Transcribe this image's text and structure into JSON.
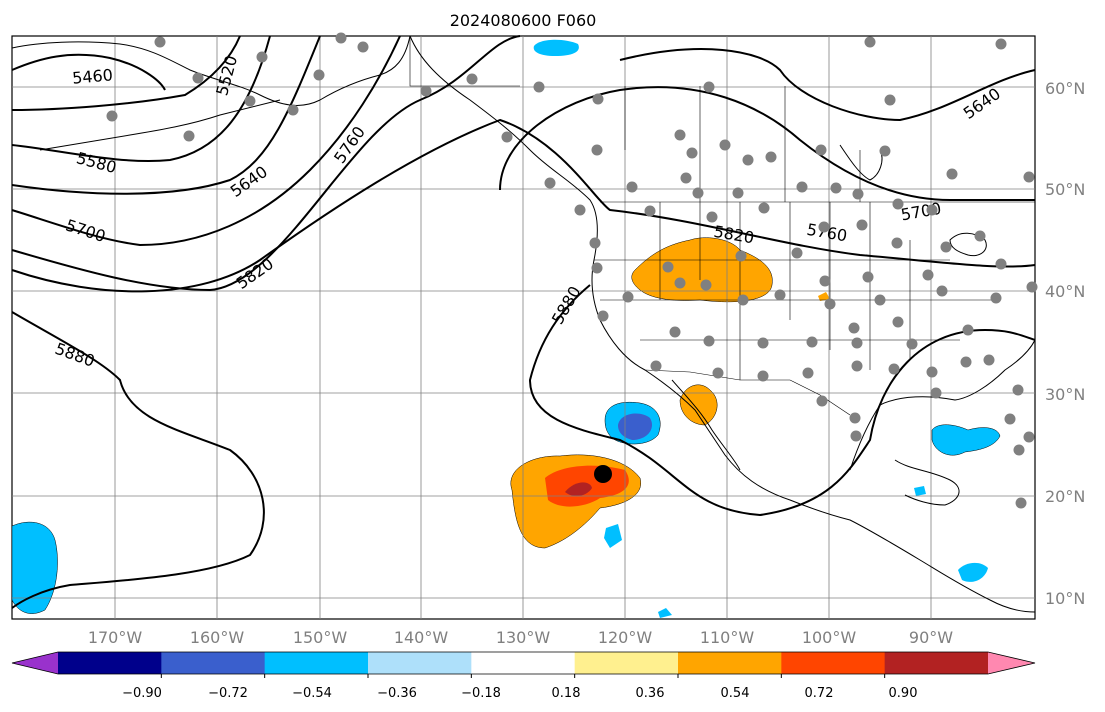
{
  "title": "2024080600 F060",
  "lat_labels": [
    "60°N",
    "50°N",
    "40°N",
    "30°N",
    "20°N",
    "10°N"
  ],
  "lon_labels": [
    "170°W",
    "160°W",
    "150°W",
    "140°W",
    "130°W",
    "120°W",
    "110°W",
    "100°W",
    "90°W"
  ],
  "contour_labels": [
    "5460",
    "5520",
    "5580",
    "5640",
    "5700",
    "5760",
    "5820",
    "5880",
    "5640",
    "5700",
    "5760",
    "5820",
    "5880"
  ],
  "colorbar": {
    "ticks": [
      "−0.90",
      "−0.72",
      "−0.54",
      "−0.36",
      "−0.18",
      "0.18",
      "0.36",
      "0.54",
      "0.72",
      "0.90"
    ],
    "colors": [
      "#9932cc",
      "#00008b",
      "#3a5fcd",
      "#00bfff",
      "#aee0fa",
      "#ffffff",
      "#fff08f",
      "#ffa500",
      "#ff4500",
      "#b22222",
      "#ff88b0"
    ]
  }
}
